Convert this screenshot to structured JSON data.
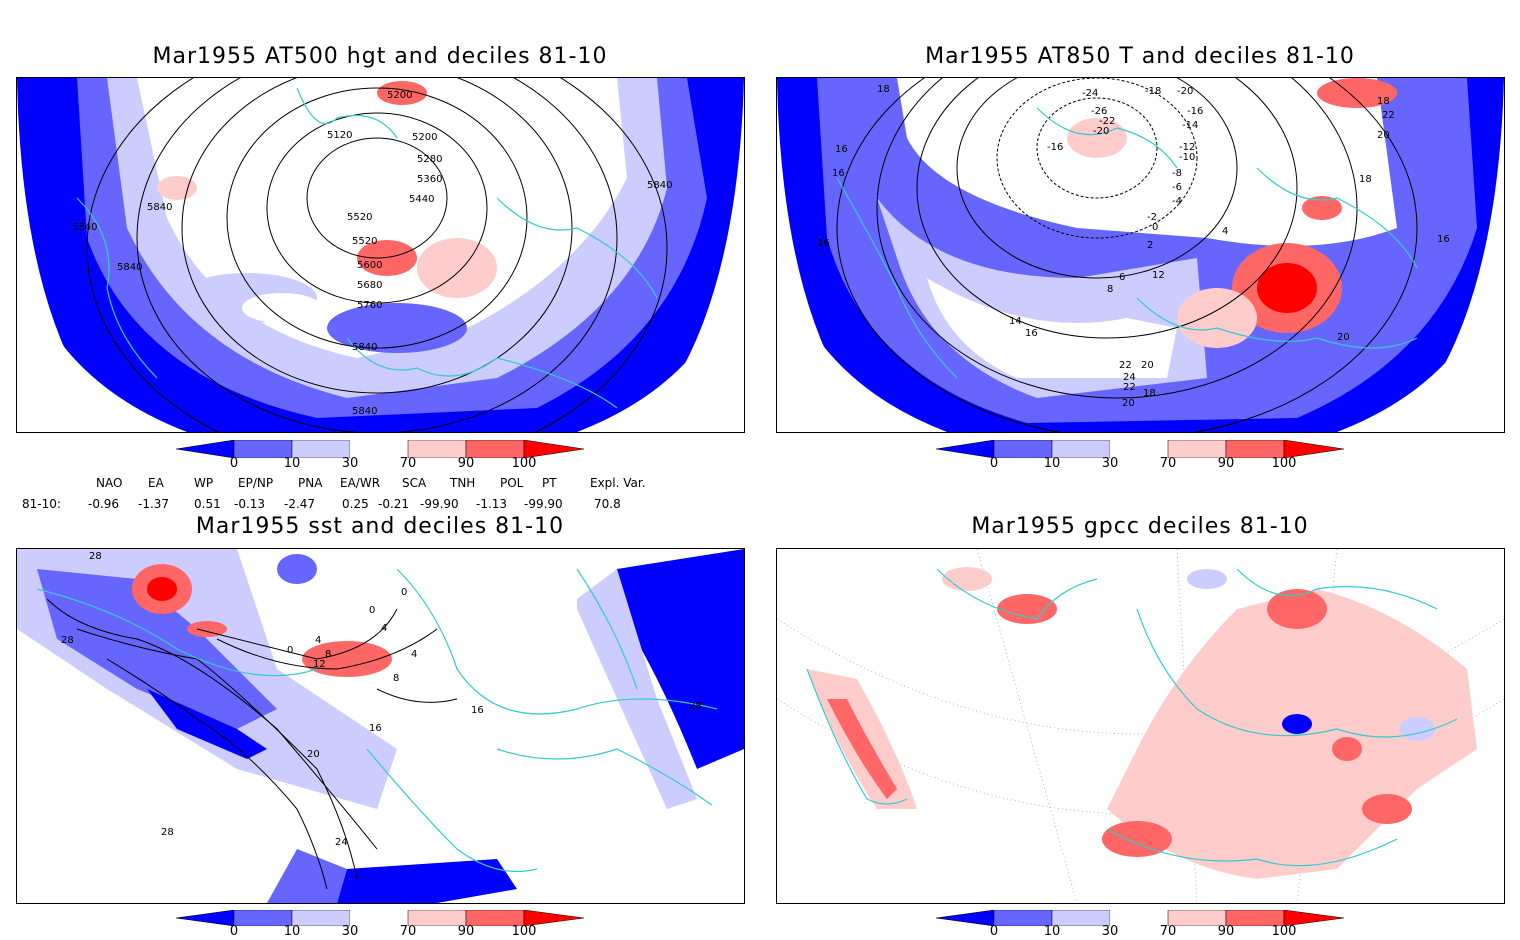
{
  "panels": [
    {
      "title": "Mar1955 AT500 hgt and deciles 81-10",
      "contour_labels": [
        "5120",
        "5200",
        "5200",
        "5280",
        "5360",
        "5440",
        "5520",
        "5520",
        "5600",
        "5680",
        "5760",
        "5840",
        "5840",
        "5840",
        "5840",
        "5840",
        "5840"
      ]
    },
    {
      "title": "Mar1955 AT850 T and deciles 81-10",
      "contour_labels": [
        "18",
        "16",
        "16",
        "16",
        "-24",
        "-26",
        "-22",
        "-20",
        "-18",
        "-20",
        "-16",
        "-16",
        "-14",
        "-12",
        "-10",
        "-8",
        "-6",
        "-4",
        "-2",
        "0",
        "2",
        "4",
        "6",
        "8",
        "12",
        "14",
        "16",
        "18",
        "20",
        "22",
        "24",
        "22",
        "20",
        "18",
        "22",
        "20",
        "18",
        "16",
        "20"
      ]
    },
    {
      "title": "Mar1955 sst and deciles 81-10",
      "contour_labels": [
        "28",
        "28",
        "0",
        "4",
        "8",
        "12",
        "0",
        "0",
        "4",
        "4",
        "8",
        "16",
        "16",
        "20",
        "24",
        "28",
        "28"
      ]
    },
    {
      "title": "Mar1955 gpcc deciles 81-10",
      "contour_labels": []
    }
  ],
  "colorbar": {
    "labels": [
      "0",
      "10",
      "30",
      "70",
      "90",
      "100"
    ],
    "colors": {
      "c0": "#0000ff",
      "c10": "#6666ff",
      "c30": "#ccccff",
      "c50": "#ffffff",
      "c70": "#ffcccc",
      "c90": "#ff6666",
      "c100": "#ff0000"
    }
  },
  "indices": {
    "row_label": "81-10:",
    "names": [
      "NAO",
      "EA",
      "WP",
      "EP/NP",
      "PNA",
      "EA/WR",
      "SCA",
      "TNH",
      "POL",
      "PT",
      "Expl. Var."
    ],
    "values": [
      "-0.96",
      "-1.37",
      "0.51",
      "-0.13",
      "-2.47",
      "0.25",
      "-0.21",
      "-99.90",
      "-1.13",
      "-99.90",
      "70.8"
    ]
  },
  "map_colors": {
    "coast": "#33cccc",
    "contour": "#000000",
    "grid": "#999999"
  }
}
